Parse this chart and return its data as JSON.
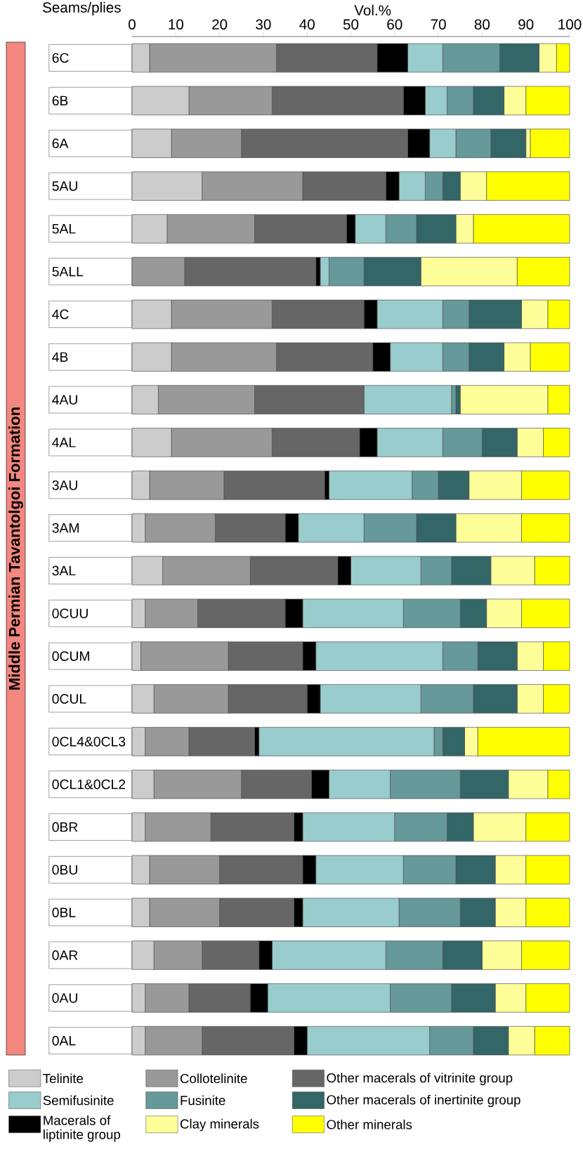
{
  "chart_data": {
    "type": "bar",
    "orientation": "horizontal",
    "stacked": true,
    "xlabel": "Vol.%",
    "ylabel": "Seams/plies",
    "annotations": [
      "Middle Permian Tavantolgoi Formation"
    ],
    "categories": [
      "6C",
      "6B",
      "6A",
      "5AU",
      "5AL",
      "5ALL",
      "4C",
      "4B",
      "4AU",
      "4AL",
      "3AU",
      "3AM",
      "3AL",
      "0CUU",
      "0CUM",
      "0CUL",
      "0CL4&0CL3",
      "0CL1&0CL2",
      "0BR",
      "0BU",
      "0BL",
      "0AR",
      "0AU",
      "0AL"
    ],
    "series": [
      {
        "name": "Telinite",
        "color": "#cccccc",
        "values": [
          4,
          13,
          9,
          16,
          8,
          0,
          9,
          9,
          6,
          9,
          4,
          3,
          7,
          3,
          2,
          5,
          3,
          5,
          3,
          4,
          4,
          5,
          3,
          3
        ]
      },
      {
        "name": "Collotelinite",
        "color": "#999999",
        "values": [
          29,
          19,
          16,
          23,
          20,
          12,
          23,
          24,
          22,
          23,
          17,
          16,
          20,
          12,
          20,
          17,
          10,
          20,
          15,
          16,
          16,
          11,
          10,
          13
        ]
      },
      {
        "name": "Other macerals of vitrinite group",
        "color": "#666666",
        "values": [
          23,
          30,
          38,
          19,
          21,
          30,
          21,
          22,
          25,
          20,
          23,
          16,
          20,
          20,
          17,
          18,
          15,
          16,
          19,
          19,
          17,
          13,
          14,
          21
        ]
      },
      {
        "name": "Macerals of liptinite group",
        "color": "#000000",
        "values": [
          7,
          5,
          5,
          3,
          2,
          1,
          3,
          4,
          0,
          4,
          1,
          3,
          3,
          4,
          3,
          3,
          1,
          4,
          2,
          3,
          2,
          3,
          4,
          3
        ]
      },
      {
        "name": "Semifusinite",
        "color": "#99cccc",
        "values": [
          8,
          5,
          6,
          6,
          7,
          2,
          15,
          12,
          20,
          15,
          19,
          15,
          16,
          23,
          29,
          23,
          40,
          14,
          21,
          20,
          22,
          26,
          28,
          28
        ]
      },
      {
        "name": "Fusinite",
        "color": "#669999",
        "values": [
          13,
          6,
          8,
          4,
          7,
          8,
          6,
          6,
          1,
          9,
          6,
          12,
          7,
          13,
          8,
          12,
          2,
          16,
          12,
          12,
          14,
          13,
          14,
          10
        ]
      },
      {
        "name": "Other macerals of inertinite group",
        "color": "#336666",
        "values": [
          9,
          7,
          8,
          4,
          9,
          13,
          12,
          8,
          1,
          8,
          7,
          9,
          9,
          6,
          9,
          10,
          5,
          11,
          6,
          9,
          8,
          9,
          10,
          8
        ]
      },
      {
        "name": "Clay minerals",
        "color": "#ffff99",
        "values": [
          4,
          5,
          1,
          6,
          4,
          22,
          6,
          6,
          20,
          6,
          12,
          15,
          10,
          8,
          6,
          6,
          3,
          9,
          12,
          7,
          7,
          9,
          7,
          6
        ]
      },
      {
        "name": "Other minerals",
        "color": "#ffff00",
        "values": [
          3,
          10,
          9,
          19,
          22,
          12,
          5,
          9,
          5,
          6,
          11,
          11,
          8,
          11,
          6,
          6,
          21,
          5,
          10,
          10,
          10,
          11,
          10,
          8
        ]
      }
    ],
    "xlim": [
      0,
      100
    ],
    "xticks": [
      0,
      10,
      20,
      30,
      40,
      50,
      60,
      70,
      80,
      90,
      100
    ],
    "legend": "bottom"
  }
}
